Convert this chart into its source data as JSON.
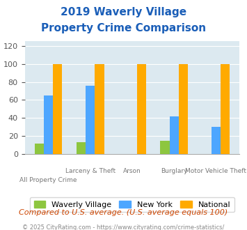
{
  "title_line1": "2019 Waverly Village",
  "title_line2": "Property Crime Comparison",
  "categories": [
    "All Property Crime",
    "Larceny & Theft",
    "Arson",
    "Burglary",
    "Motor Vehicle Theft"
  ],
  "top_labels": [
    "",
    "Larceny & Theft",
    "Arson",
    "Burglary",
    "Motor Vehicle Theft"
  ],
  "bottom_labels": [
    "All Property Crime",
    "",
    "",
    "",
    ""
  ],
  "waverly": [
    12,
    13,
    0,
    15,
    0
  ],
  "newyork": [
    65,
    76,
    0,
    42,
    30
  ],
  "national": [
    100,
    100,
    100,
    100,
    100
  ],
  "color_waverly": "#8dc63f",
  "color_newyork": "#4da6ff",
  "color_national": "#ffaa00",
  "bg_color": "#dce9f0",
  "title_color": "#1a5eb8",
  "ylabel_ticks": [
    0,
    20,
    40,
    60,
    80,
    100,
    120
  ],
  "ylim": [
    0,
    125
  ],
  "note": "Compared to U.S. average. (U.S. average equals 100)",
  "footer": "© 2025 CityRating.com - https://www.cityrating.com/crime-statistics/",
  "legend_labels": [
    "Waverly Village",
    "New York",
    "National"
  ],
  "bar_width": 0.22
}
